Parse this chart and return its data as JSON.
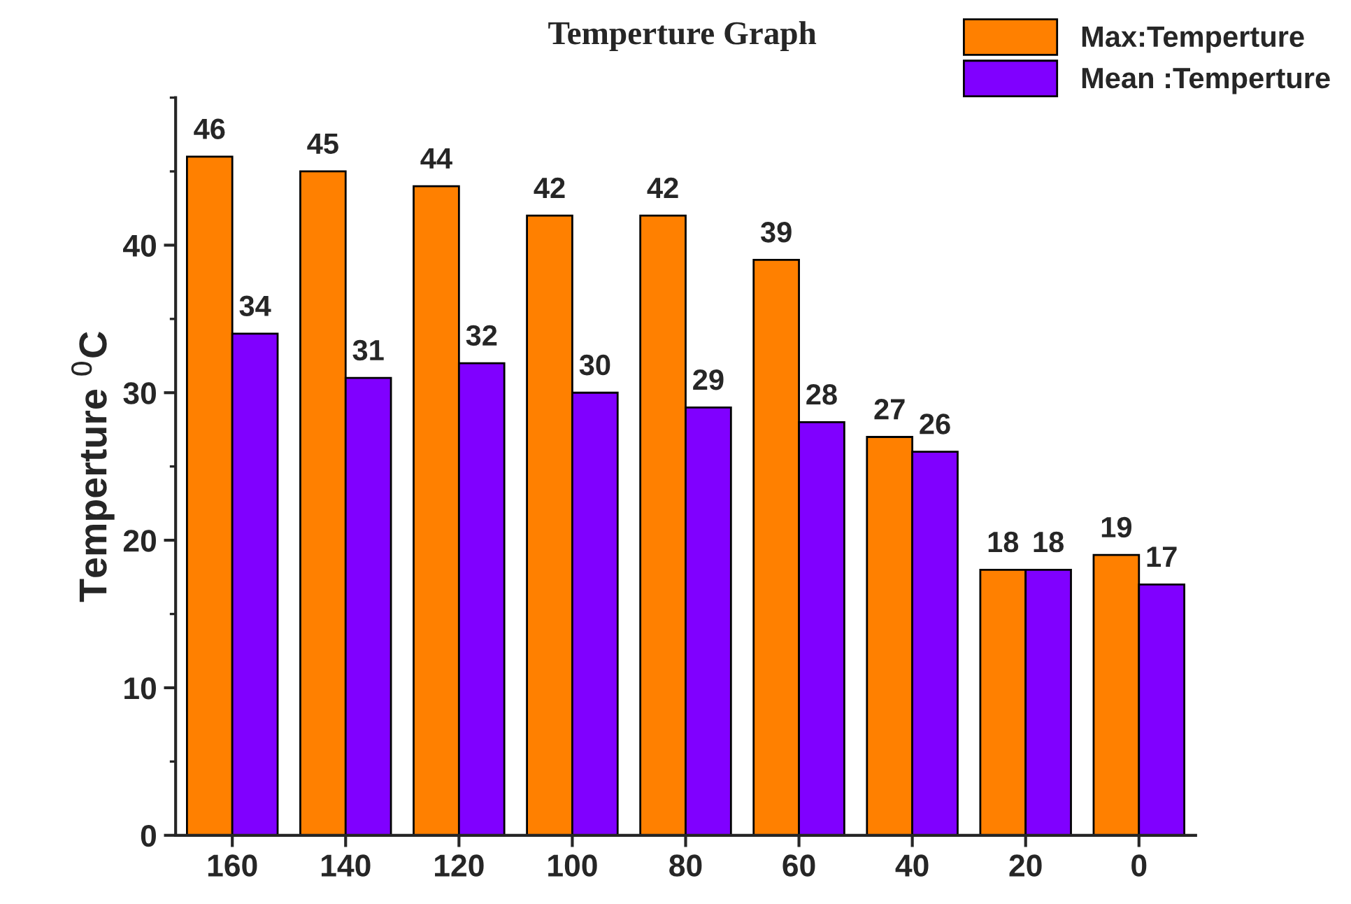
{
  "chart_data": {
    "type": "bar",
    "title": "Temperture Graph",
    "ylabel": "Temperture $^{0}$C",
    "categories": [
      "160",
      "140",
      "120",
      "100",
      "80",
      "60",
      "40",
      "20",
      "0"
    ],
    "series": [
      {
        "name": "Max:Temperture",
        "color": "#ff8000",
        "values": [
          46,
          45,
          44,
          42,
          42,
          39,
          27,
          18,
          19
        ]
      },
      {
        "name": "Mean :Temperture",
        "color": "#8000ff",
        "values": [
          34,
          31,
          32,
          30,
          29,
          28,
          26,
          18,
          17
        ]
      }
    ],
    "ylim": [
      0,
      50
    ],
    "yticks": [
      0,
      10,
      20,
      30,
      40
    ],
    "grid": false,
    "legend": "top right",
    "data_labels": true
  }
}
